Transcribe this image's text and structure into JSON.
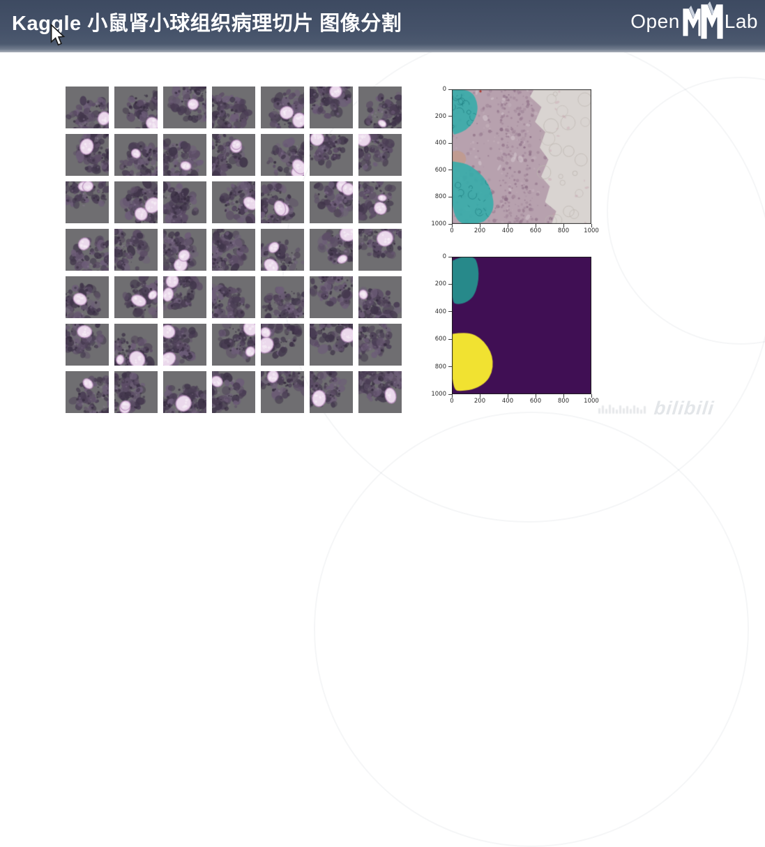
{
  "header": {
    "title": "Kaggle 小鼠肾小球组织病理切片 图像分割",
    "logo": {
      "prefix": "Open",
      "mm": "MM",
      "suffix": "Lab"
    }
  },
  "watermark": {
    "text": "bilibili"
  },
  "tiles": {
    "rows": 7,
    "cols": 7,
    "seed": 12,
    "count": 49
  },
  "palette": {
    "header_bg": "#46536a",
    "tile_bg": "#6f6e71",
    "tissue": [
      "#4a3d54",
      "#5c4d66",
      "#6d5d78",
      "#3f3449"
    ],
    "tissue_fleck": "#352b3e",
    "tissue_dot": "#8e7f99",
    "glom_fill": "#ebd9ec",
    "glom_edge": "#b78cbc",
    "glom_inner": "#f6eef7",
    "hist_base": "#b7a1ae",
    "hist_speckles": [
      "#a18599",
      "#93758b",
      "#c4b0bb",
      "#86677f"
    ],
    "hist_hole": "#d2c5cc",
    "hist_white": "#d9d4d1",
    "hist_bubble": "#beb7b1",
    "hist_brown": "#c29a8c",
    "hist_red": "#b03a30",
    "teal_fill": "rgba(56,171,169,0.92)",
    "teal_dark": "#157277",
    "mask_bg": "#400f54",
    "mask_teal": "#27898a",
    "mask_yellow": "#f1e231",
    "axis_color": "#2d2d2d"
  },
  "chart_data": [
    {
      "id": "histology",
      "type": "heatmap",
      "title": "",
      "description": "H&E stained kidney tissue patch (1000x1000) with predicted glomeruli regions overlaid in teal",
      "x_range": [
        0,
        1000
      ],
      "y_range": [
        0,
        1000
      ],
      "x_ticks": [
        0,
        200,
        400,
        600,
        800,
        1000
      ],
      "y_ticks": [
        0,
        200,
        400,
        600,
        800,
        1000
      ],
      "regions": [
        {
          "name": "glomerulus-overlay-top-left",
          "role": "teal-overlay",
          "points": [
            [
              0,
              5
            ],
            [
              95,
              0
            ],
            [
              152,
              30
            ],
            [
              180,
              92
            ],
            [
              186,
              158
            ],
            [
              158,
              242
            ],
            [
              104,
              302
            ],
            [
              34,
              332
            ],
            [
              0,
              338
            ]
          ]
        },
        {
          "name": "glomerulus-overlay-bottom-left",
          "role": "teal-overlay",
          "points": [
            [
              0,
              535
            ],
            [
              95,
              545
            ],
            [
              182,
              602
            ],
            [
              252,
              682
            ],
            [
              292,
              778
            ],
            [
              302,
              882
            ],
            [
              262,
              956
            ],
            [
              204,
              1000
            ],
            [
              0,
              1000
            ]
          ]
        },
        {
          "name": "pale-adipose-region",
          "role": "white-area",
          "points": [
            [
              560,
              55
            ],
            [
              588,
              0
            ],
            [
              1000,
              0
            ],
            [
              1000,
              1000
            ],
            [
              715,
              1000
            ],
            [
              748,
              905
            ],
            [
              668,
              838
            ],
            [
              702,
              722
            ],
            [
              640,
              648
            ],
            [
              692,
              522
            ],
            [
              630,
              432
            ],
            [
              670,
              318
            ],
            [
              596,
              242
            ],
            [
              642,
              132
            ]
          ]
        }
      ]
    },
    {
      "id": "mask",
      "type": "heatmap",
      "title": "",
      "description": "Segmentation mask (viridis colormap): purple background, teal and yellow glomerulus classes",
      "x_range": [
        0,
        1000
      ],
      "y_range": [
        0,
        1000
      ],
      "x_ticks": [
        0,
        200,
        400,
        600,
        800,
        1000
      ],
      "y_ticks": [
        0,
        200,
        400,
        600,
        800,
        1000
      ],
      "regions": [
        {
          "name": "mask-blob-top-left",
          "role": "mask-teal",
          "points": [
            [
              0,
              32
            ],
            [
              56,
              0
            ],
            [
              162,
              0
            ],
            [
              183,
              48
            ],
            [
              194,
              122
            ],
            [
              186,
              206
            ],
            [
              158,
              286
            ],
            [
              108,
              332
            ],
            [
              40,
              348
            ],
            [
              0,
              330
            ]
          ]
        },
        {
          "name": "mask-blob-bottom-left",
          "role": "mask-yellow",
          "points": [
            [
              0,
              562
            ],
            [
              88,
              550
            ],
            [
              168,
              568
            ],
            [
              232,
              618
            ],
            [
              278,
              688
            ],
            [
              296,
              762
            ],
            [
              288,
              842
            ],
            [
              248,
              912
            ],
            [
              168,
              962
            ],
            [
              78,
              978
            ],
            [
              0,
              972
            ]
          ]
        }
      ]
    }
  ]
}
